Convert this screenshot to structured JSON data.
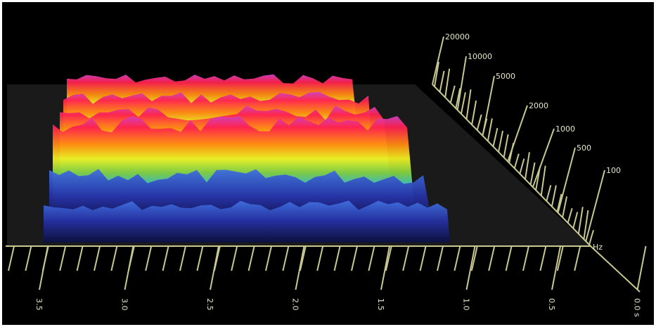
{
  "frequency_axis": {
    "labels": [
      "20000",
      "10000",
      "5000",
      "2000",
      "1000",
      "500",
      "100"
    ],
    "unit": "Hz"
  },
  "time_axis": {
    "labels": [
      "3.5",
      "3.0",
      "2.5",
      "2.0",
      "1.5",
      "1.0",
      "0.5",
      "0.0 s"
    ]
  }
}
